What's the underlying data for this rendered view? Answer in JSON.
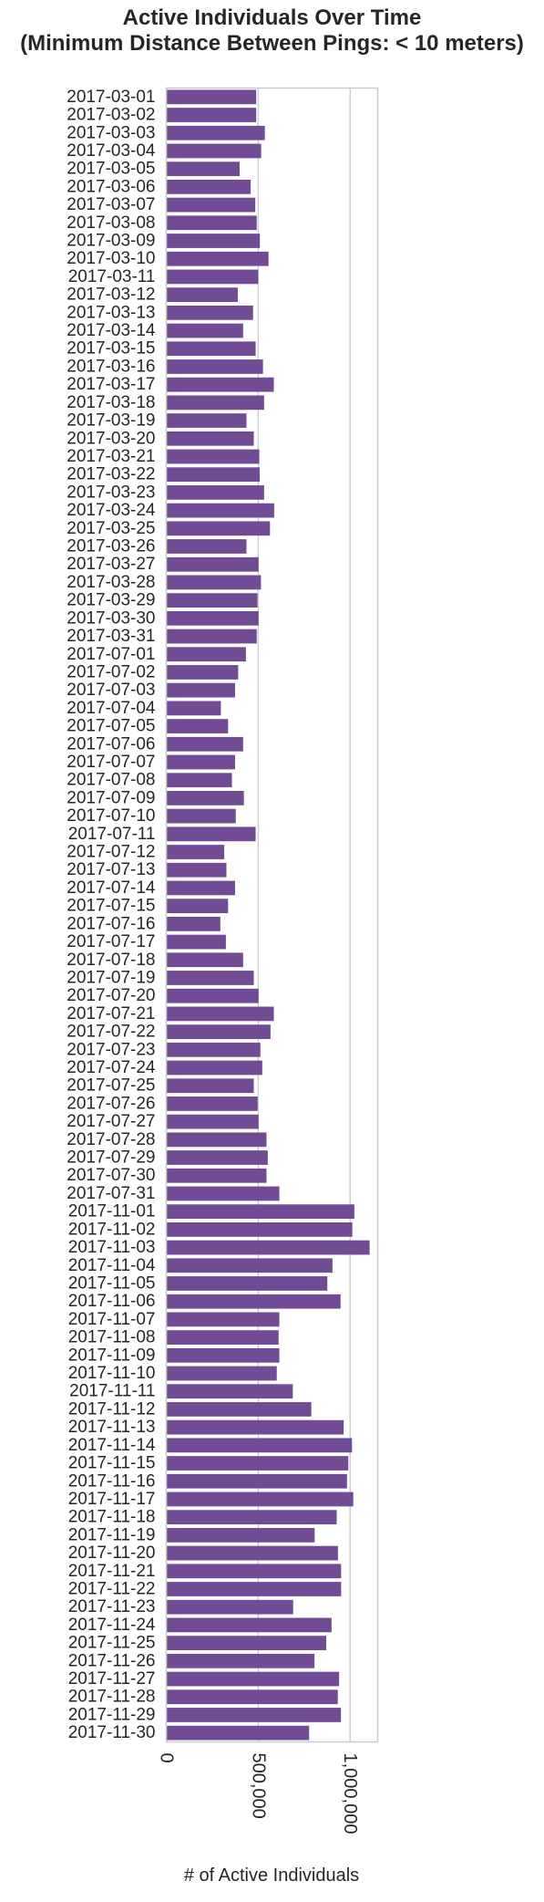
{
  "chart_data": {
    "type": "bar",
    "orientation": "horizontal",
    "title_lines": [
      "Active Individuals Over Time",
      "(Minimum Distance Between Pings: < 10 meters)"
    ],
    "xlabel": "# of Active Individuals",
    "ylabel": "",
    "xlim": [
      0,
      1150000
    ],
    "xticks": [
      0,
      500000,
      1000000
    ],
    "xtick_labels": [
      "0",
      "500,000",
      "1,000,000"
    ],
    "grid": "vertical",
    "bar_color": "#714b94",
    "categories": [
      "2017-03-01",
      "2017-03-02",
      "2017-03-03",
      "2017-03-04",
      "2017-03-05",
      "2017-03-06",
      "2017-03-07",
      "2017-03-08",
      "2017-03-09",
      "2017-03-10",
      "2017-03-11",
      "2017-03-12",
      "2017-03-13",
      "2017-03-14",
      "2017-03-15",
      "2017-03-16",
      "2017-03-17",
      "2017-03-18",
      "2017-03-19",
      "2017-03-20",
      "2017-03-21",
      "2017-03-22",
      "2017-03-23",
      "2017-03-24",
      "2017-03-25",
      "2017-03-26",
      "2017-03-27",
      "2017-03-28",
      "2017-03-29",
      "2017-03-30",
      "2017-03-31",
      "2017-07-01",
      "2017-07-02",
      "2017-07-03",
      "2017-07-04",
      "2017-07-05",
      "2017-07-06",
      "2017-07-07",
      "2017-07-08",
      "2017-07-09",
      "2017-07-10",
      "2017-07-11",
      "2017-07-12",
      "2017-07-13",
      "2017-07-14",
      "2017-07-15",
      "2017-07-16",
      "2017-07-17",
      "2017-07-18",
      "2017-07-19",
      "2017-07-20",
      "2017-07-21",
      "2017-07-22",
      "2017-07-23",
      "2017-07-24",
      "2017-07-25",
      "2017-07-26",
      "2017-07-27",
      "2017-07-28",
      "2017-07-29",
      "2017-07-30",
      "2017-07-31",
      "2017-11-01",
      "2017-11-02",
      "2017-11-03",
      "2017-11-04",
      "2017-11-05",
      "2017-11-06",
      "2017-11-07",
      "2017-11-08",
      "2017-11-09",
      "2017-11-10",
      "2017-11-11",
      "2017-11-12",
      "2017-11-13",
      "2017-11-14",
      "2017-11-15",
      "2017-11-16",
      "2017-11-17",
      "2017-11-18",
      "2017-11-19",
      "2017-11-20",
      "2017-11-21",
      "2017-11-22",
      "2017-11-23",
      "2017-11-24",
      "2017-11-25",
      "2017-11-26",
      "2017-11-27",
      "2017-11-28",
      "2017-11-29",
      "2017-11-30"
    ],
    "values": [
      489000,
      489000,
      536000,
      516000,
      399000,
      459000,
      484000,
      492000,
      509000,
      556000,
      500000,
      389000,
      472000,
      418000,
      486000,
      526000,
      585000,
      532000,
      436000,
      476000,
      506000,
      508000,
      532000,
      587000,
      564000,
      436000,
      502000,
      515000,
      496000,
      502000,
      492000,
      433000,
      391000,
      374000,
      297000,
      336000,
      418000,
      374000,
      357000,
      422000,
      378000,
      486000,
      315000,
      327000,
      374000,
      336000,
      294000,
      324000,
      418000,
      476000,
      502000,
      585000,
      567000,
      512000,
      522000,
      476000,
      497000,
      502000,
      545000,
      552000,
      545000,
      615000,
      1023000,
      1012000,
      1106000,
      904000,
      876000,
      948000,
      615000,
      611000,
      615000,
      601000,
      688000,
      789000,
      965000,
      1010000,
      990000,
      983000,
      1017000,
      927000,
      807000,
      934000,
      951000,
      951000,
      690000,
      899000,
      870000,
      806000,
      940000,
      933000,
      950000,
      777000
    ]
  }
}
